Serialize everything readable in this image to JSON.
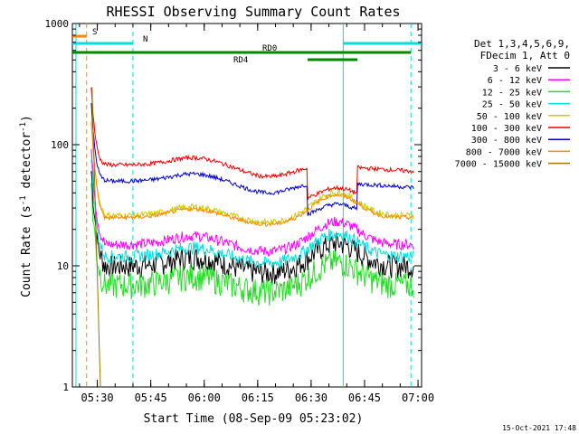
{
  "chart_data": {
    "type": "line",
    "title": "RHESSI Observing Summary Count Rates",
    "xlabel": "Start Time (08-Sep-09 05:23:02)",
    "ylabel_main": "Count Rate (s",
    "ylabel_sup1": "-1",
    "ylabel_mid": " detector",
    "ylabel_sup2": "-1",
    "ylabel_end": ")",
    "y_scale": "log",
    "ylim": [
      1,
      1000
    ],
    "xlim_minutes": [
      0,
      98
    ],
    "x_ticks": [
      {
        "label": "05:30",
        "minute": 7
      },
      {
        "label": "05:45",
        "minute": 22
      },
      {
        "label": "06:00",
        "minute": 37
      },
      {
        "label": "06:15",
        "minute": 52
      },
      {
        "label": "06:30",
        "minute": 67
      },
      {
        "label": "06:45",
        "minute": 82
      },
      {
        "label": "07:00",
        "minute": 97
      }
    ],
    "y_ticks": [
      {
        "label": "1",
        "value": 1
      },
      {
        "label": "10",
        "value": 10
      },
      {
        "label": "100",
        "value": 100
      },
      {
        "label": "1000",
        "value": 1000
      }
    ],
    "legend_header": [
      "Det 1,3,4,5,6,9,",
      "FDecim 1, Att 0"
    ],
    "series": [
      {
        "name": "3 - 6 keV",
        "color": "#000000",
        "level": 10,
        "noise": 0.22
      },
      {
        "name": "6 - 12 keV",
        "color": "#ff00ff",
        "level": 15,
        "noise": 0.1
      },
      {
        "name": "12 - 25 keV",
        "color": "#22dd22",
        "level": 7,
        "noise": 0.25
      },
      {
        "name": "25 - 50 keV",
        "color": "#00dddd",
        "level": 12,
        "noise": 0.12
      },
      {
        "name": "50 - 100 keV",
        "color": "#cccc00",
        "level": 26,
        "noise": 0.06
      },
      {
        "name": "100 - 300 keV",
        "color": "#ee0000",
        "level": 68,
        "noise": 0.04
      },
      {
        "name": "300 - 800 keV",
        "color": "#0000cc",
        "level": 50,
        "noise": 0.04
      },
      {
        "name": "800 - 7000 keV",
        "color": "#ff8800",
        "level": 25,
        "noise": 0.04
      },
      {
        "name": "7000 - 15000 keV",
        "color": "#997700",
        "level": null,
        "noise": 0
      }
    ],
    "flags": [
      {
        "label": "S",
        "color": "#ff8800",
        "from": 0,
        "to": 4
      },
      {
        "label": "N",
        "color": "#00dddd",
        "from": 0,
        "to": 17
      },
      {
        "label": "N",
        "color": "#00dddd",
        "from": 76,
        "to": 98
      },
      {
        "label": "RD0",
        "color": "#008800",
        "from": 0,
        "to": 95
      },
      {
        "label": "RD4",
        "color": "#008800",
        "from": 66,
        "to": 80
      }
    ],
    "night_markers_minutes": [
      1,
      17,
      76,
      95
    ],
    "saa_marker_minutes": 4
  },
  "footer": {
    "timestamp": "15-Oct-2021 17:48"
  }
}
